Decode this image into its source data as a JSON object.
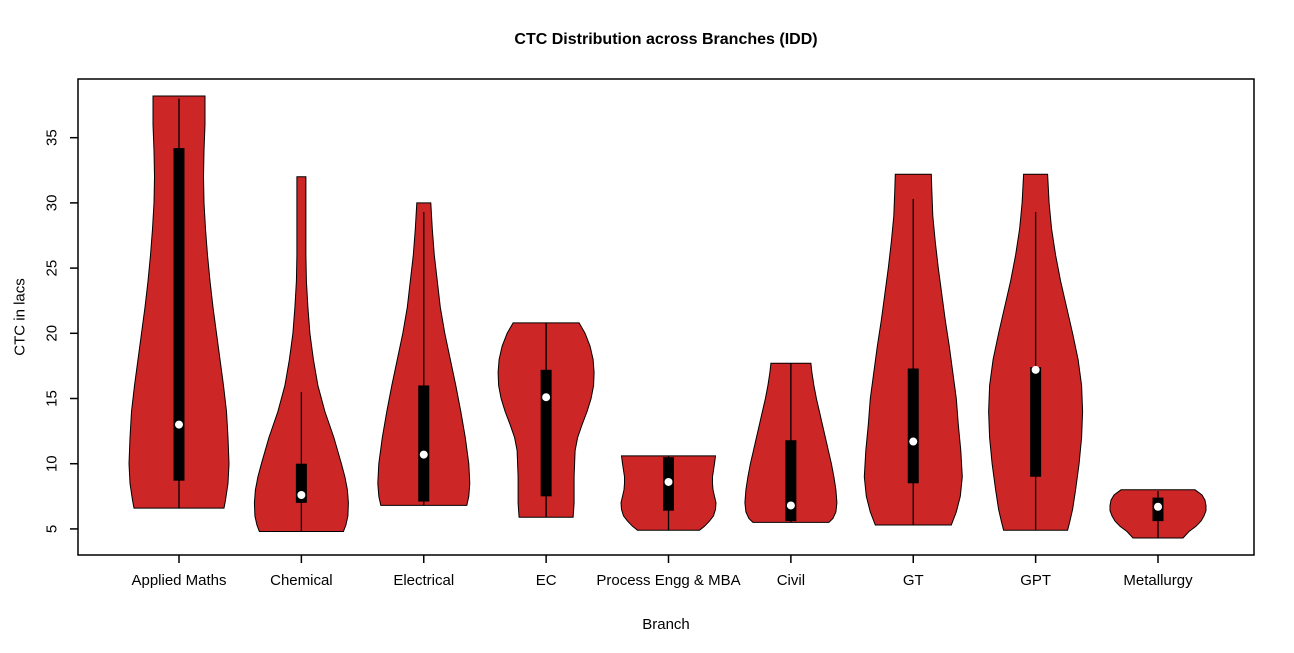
{
  "chart_data": {
    "type": "violin",
    "title": "CTC Distribution across Branches (IDD)",
    "xlabel": "Branch",
    "ylabel": "CTC in lacs",
    "y_ticks": [
      5,
      10,
      15,
      20,
      25,
      30,
      35
    ],
    "ylim": [
      3.0,
      39.5
    ],
    "grid": false,
    "legend": "none",
    "fill_color": "#CC2626",
    "outline_color": "#000000",
    "box_color": "#000000",
    "median_dot_color": "#ffffff",
    "categories": [
      "Applied Maths",
      "Chemical",
      "Electrical",
      "EC",
      "Process Engg & MBA",
      "Civil",
      "GT",
      "GPT",
      "Metallurgy"
    ],
    "series": [
      {
        "branch": "Applied Maths",
        "median": 13.0,
        "q1": 8.7,
        "q3": 34.2,
        "whisker_low": 6.6,
        "whisker_high": 38.0,
        "range_min": 6.6,
        "range_max": 38.2,
        "profile": [
          [
            38.2,
            0.52
          ],
          [
            36,
            0.52
          ],
          [
            34,
            0.5
          ],
          [
            32,
            0.49
          ],
          [
            30,
            0.5
          ],
          [
            28,
            0.53
          ],
          [
            26,
            0.57
          ],
          [
            24,
            0.62
          ],
          [
            22,
            0.68
          ],
          [
            20,
            0.75
          ],
          [
            18,
            0.82
          ],
          [
            16,
            0.89
          ],
          [
            14,
            0.95
          ],
          [
            12,
            0.98
          ],
          [
            10,
            1.0
          ],
          [
            8.5,
            0.98
          ],
          [
            7.2,
            0.93
          ],
          [
            6.6,
            0.9
          ]
        ]
      },
      {
        "branch": "Chemical",
        "median": 7.6,
        "q1": 7.0,
        "q3": 10.0,
        "whisker_low": 4.8,
        "whisker_high": 15.5,
        "range_min": 4.8,
        "range_max": 32.0,
        "profile": [
          [
            32,
            0.09
          ],
          [
            30,
            0.09
          ],
          [
            28,
            0.09
          ],
          [
            26,
            0.09
          ],
          [
            24,
            0.1
          ],
          [
            22,
            0.13
          ],
          [
            20,
            0.17
          ],
          [
            18,
            0.24
          ],
          [
            16,
            0.33
          ],
          [
            14,
            0.47
          ],
          [
            12,
            0.65
          ],
          [
            10,
            0.8
          ],
          [
            9,
            0.87
          ],
          [
            8,
            0.92
          ],
          [
            7,
            0.94
          ],
          [
            6,
            0.93
          ],
          [
            5.3,
            0.89
          ],
          [
            4.8,
            0.84
          ]
        ]
      },
      {
        "branch": "Electrical",
        "median": 10.7,
        "q1": 7.1,
        "q3": 16.0,
        "whisker_low": 6.8,
        "whisker_high": 29.3,
        "range_min": 6.8,
        "range_max": 30.0,
        "profile": [
          [
            30,
            0.14
          ],
          [
            28,
            0.17
          ],
          [
            26,
            0.21
          ],
          [
            24,
            0.27
          ],
          [
            22,
            0.33
          ],
          [
            20,
            0.42
          ],
          [
            18,
            0.53
          ],
          [
            16,
            0.64
          ],
          [
            14,
            0.74
          ],
          [
            12,
            0.83
          ],
          [
            10,
            0.9
          ],
          [
            8.5,
            0.92
          ],
          [
            7.5,
            0.9
          ],
          [
            6.8,
            0.86
          ]
        ]
      },
      {
        "branch": "EC",
        "median": 15.1,
        "q1": 7.5,
        "q3": 17.2,
        "whisker_low": 5.9,
        "whisker_high": 20.8,
        "range_min": 5.9,
        "range_max": 20.8,
        "profile": [
          [
            20.8,
            0.66
          ],
          [
            20,
            0.78
          ],
          [
            19,
            0.88
          ],
          [
            18,
            0.94
          ],
          [
            17,
            0.96
          ],
          [
            16,
            0.95
          ],
          [
            15,
            0.9
          ],
          [
            14,
            0.82
          ],
          [
            13,
            0.72
          ],
          [
            12,
            0.63
          ],
          [
            11,
            0.58
          ],
          [
            10,
            0.57
          ],
          [
            9,
            0.56
          ],
          [
            8,
            0.56
          ],
          [
            7,
            0.56
          ],
          [
            6.4,
            0.55
          ],
          [
            5.9,
            0.54
          ]
        ]
      },
      {
        "branch": "Process Engg & MBA",
        "median": 8.6,
        "q1": 6.4,
        "q3": 10.5,
        "whisker_low": 4.9,
        "whisker_high": 10.6,
        "range_min": 4.9,
        "range_max": 10.6,
        "profile": [
          [
            10.6,
            0.94
          ],
          [
            10,
            0.92
          ],
          [
            9.5,
            0.9
          ],
          [
            9,
            0.88
          ],
          [
            8.5,
            0.88
          ],
          [
            8,
            0.89
          ],
          [
            7.5,
            0.92
          ],
          [
            7,
            0.95
          ],
          [
            6.5,
            0.94
          ],
          [
            6,
            0.9
          ],
          [
            5.6,
            0.82
          ],
          [
            5.2,
            0.72
          ],
          [
            4.9,
            0.62
          ]
        ]
      },
      {
        "branch": "Civil",
        "median": 6.8,
        "q1": 5.6,
        "q3": 11.8,
        "whisker_low": 5.5,
        "whisker_high": 17.7,
        "range_min": 5.5,
        "range_max": 17.7,
        "profile": [
          [
            17.7,
            0.4
          ],
          [
            17,
            0.42
          ],
          [
            16,
            0.46
          ],
          [
            15,
            0.51
          ],
          [
            14,
            0.57
          ],
          [
            13,
            0.63
          ],
          [
            12,
            0.69
          ],
          [
            11,
            0.75
          ],
          [
            10,
            0.81
          ],
          [
            9,
            0.86
          ],
          [
            8,
            0.9
          ],
          [
            7,
            0.92
          ],
          [
            6.3,
            0.9
          ],
          [
            5.8,
            0.84
          ],
          [
            5.5,
            0.76
          ]
        ]
      },
      {
        "branch": "GT",
        "median": 11.7,
        "q1": 8.5,
        "q3": 17.3,
        "whisker_low": 5.3,
        "whisker_high": 30.3,
        "range_min": 5.3,
        "range_max": 32.2,
        "profile": [
          [
            32.2,
            0.36
          ],
          [
            31,
            0.37
          ],
          [
            29,
            0.39
          ],
          [
            27,
            0.44
          ],
          [
            25,
            0.5
          ],
          [
            23,
            0.57
          ],
          [
            21,
            0.64
          ],
          [
            19,
            0.72
          ],
          [
            17,
            0.79
          ],
          [
            15,
            0.86
          ],
          [
            13,
            0.9
          ],
          [
            11,
            0.95
          ],
          [
            9,
            0.98
          ],
          [
            7.5,
            0.94
          ],
          [
            6.3,
            0.86
          ],
          [
            5.3,
            0.76
          ]
        ]
      },
      {
        "branch": "GPT",
        "median": 17.2,
        "q1": 9.0,
        "q3": 17.4,
        "whisker_low": 4.9,
        "whisker_high": 29.3,
        "range_min": 4.9,
        "range_max": 32.2,
        "profile": [
          [
            32.2,
            0.24
          ],
          [
            30,
            0.27
          ],
          [
            28,
            0.32
          ],
          [
            26,
            0.4
          ],
          [
            24,
            0.5
          ],
          [
            22,
            0.62
          ],
          [
            20,
            0.74
          ],
          [
            18,
            0.85
          ],
          [
            16,
            0.92
          ],
          [
            14,
            0.94
          ],
          [
            12,
            0.92
          ],
          [
            10,
            0.87
          ],
          [
            8,
            0.8
          ],
          [
            6.5,
            0.74
          ],
          [
            5.5,
            0.68
          ],
          [
            4.9,
            0.64
          ]
        ]
      },
      {
        "branch": "Metallurgy",
        "median": 6.7,
        "q1": 5.6,
        "q3": 7.4,
        "whisker_low": 4.3,
        "whisker_high": 7.9,
        "range_min": 4.3,
        "range_max": 8.0,
        "profile": [
          [
            8.0,
            0.74
          ],
          [
            7.6,
            0.88
          ],
          [
            7.2,
            0.94
          ],
          [
            6.8,
            0.96
          ],
          [
            6.4,
            0.96
          ],
          [
            6.0,
            0.92
          ],
          [
            5.6,
            0.86
          ],
          [
            5.2,
            0.76
          ],
          [
            4.8,
            0.62
          ],
          [
            4.3,
            0.5
          ]
        ]
      }
    ]
  }
}
